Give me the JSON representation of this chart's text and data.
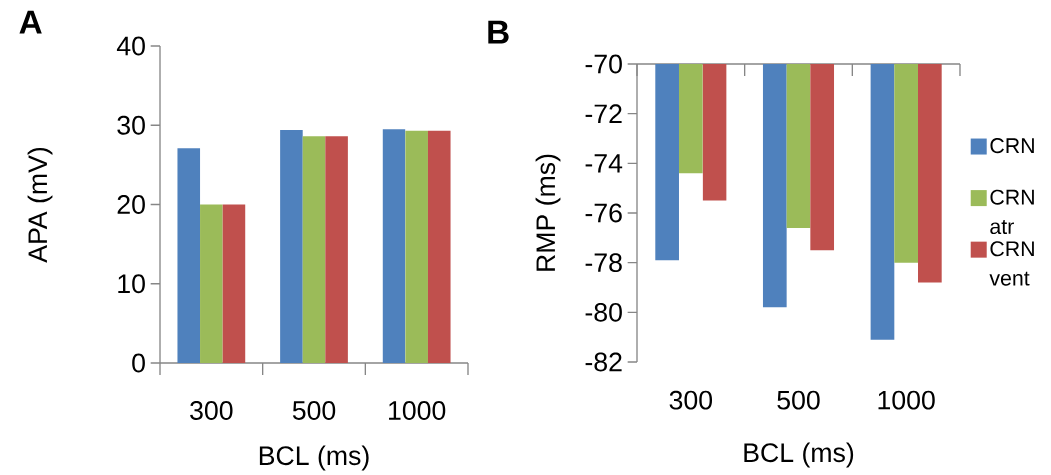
{
  "chart_data": [
    {
      "type": "bar",
      "title": "A",
      "xlabel": "BCL (ms)",
      "ylabel": "APA (mV)",
      "categories": [
        "300",
        "500",
        "1000"
      ],
      "series": [
        {
          "color": "#4f81bd",
          "values": [
            27.1,
            29.4,
            29.5
          ]
        },
        {
          "color": "#9bbb59",
          "values": [
            20,
            28.6,
            29.3
          ]
        },
        {
          "color": "#c0504d",
          "values": [
            20,
            28.6,
            29.3
          ]
        }
      ],
      "ylim": [
        0,
        40
      ],
      "yticks": [
        0,
        10,
        20,
        30,
        40
      ]
    },
    {
      "type": "bar",
      "title": "B",
      "xlabel": "BCL (ms)",
      "ylabel": "RMP (ms)",
      "categories": [
        "300",
        "500",
        "1000"
      ],
      "series": [
        {
          "name": "CRN",
          "color": "#4f81bd",
          "values": [
            -77.9,
            -79.8,
            -81.1
          ]
        },
        {
          "name": "CRN atr",
          "color": "#9bbb59",
          "values": [
            -74.4,
            -76.6,
            -78.0
          ]
        },
        {
          "name": "CRN vent",
          "color": "#c0504d",
          "values": [
            -75.5,
            -77.5,
            -78.8
          ]
        }
      ],
      "ylim": [
        -82,
        -70
      ],
      "yticks": [
        -82,
        -80,
        -78,
        -76,
        -74,
        -72,
        -70
      ],
      "legend": "right"
    }
  ]
}
